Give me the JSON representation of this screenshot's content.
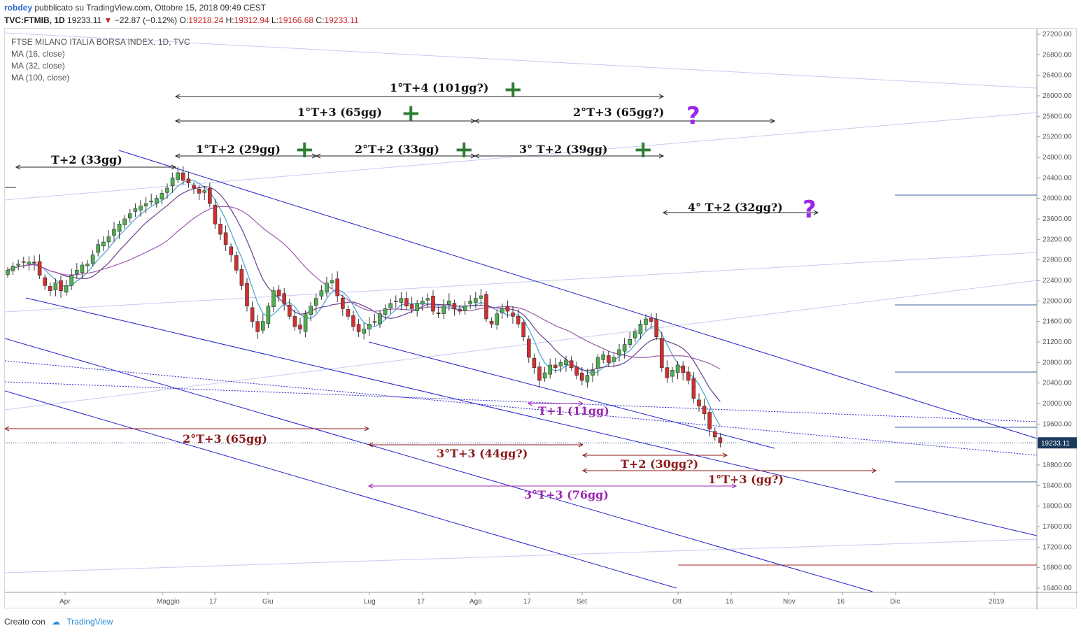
{
  "header": {
    "author": "robdey",
    "published": "pubblicato su TradingView.com, Ottobre 15, 2018 09:49 CEST",
    "symbol": "TVC:FTMIB, 1D",
    "last": "19233.11",
    "change": "−22.87 (−0.12%)",
    "o_label": "O:",
    "o_value": "19218.24",
    "h_label": "H:",
    "h_value": "19312.94",
    "l_label": "L:",
    "l_value": "19166.68",
    "c_label": "C:",
    "c_value": "19233.11"
  },
  "legend": {
    "title": "FTSE MILANO ITALIA BORSA INDEX, 1D, TVC",
    "ma1": "MA (16, close)",
    "ma2": "MA (32, close)",
    "ma3": "MA (100, close)"
  },
  "footer": {
    "created": "Creato con",
    "brand": "TradingView"
  },
  "colors": {
    "up": "#4caf50",
    "down": "#d32f2f",
    "channel": "#2222cc",
    "ma16": "#4aa3c9",
    "ma32": "#6a3d8e",
    "ma100": "#9c5cab",
    "label_bg": "#1a3a5c"
  },
  "chart_data": {
    "type": "candlestick",
    "symbol": "TVC:FTMIB",
    "interval": "1D",
    "y_axis": {
      "min": 16400,
      "max": 27200,
      "ticks": [
        16400,
        16800,
        17200,
        17600,
        18000,
        18400,
        18800,
        19200,
        19600,
        20000,
        20400,
        20800,
        21200,
        21600,
        22000,
        22400,
        22800,
        23200,
        23600,
        24000,
        24400,
        24800,
        25200,
        25600,
        26000,
        26400,
        26800,
        27200
      ],
      "position": "right"
    },
    "x_axis": {
      "labels": [
        "Apr",
        "Maggio",
        "17",
        "Giu",
        "Lug",
        "17",
        "Ago",
        "17",
        "Set",
        "Ott",
        "16",
        "Nov",
        "16",
        "Dic",
        "2019"
      ]
    },
    "last_price_label": "19233.11",
    "closes": [
      22600,
      22680,
      22720,
      22750,
      22760,
      22740,
      22500,
      22300,
      22200,
      22350,
      22200,
      22300,
      22500,
      22600,
      22700,
      22720,
      22900,
      23100,
      23150,
      23250,
      23400,
      23500,
      23600,
      23700,
      23800,
      23850,
      23900,
      23950,
      24000,
      24100,
      24200,
      24400,
      24500,
      24350,
      24300,
      24200,
      24100,
      24150,
      23900,
      23500,
      23300,
      23100,
      22900,
      22600,
      22300,
      21900,
      21600,
      21400,
      21600,
      21900,
      22200,
      22100,
      21950,
      21700,
      21500,
      21450,
      21750,
      21900,
      22050,
      22200,
      22350,
      22400,
      22100,
      21850,
      21700,
      21500,
      21400,
      21450,
      21550,
      21600,
      21750,
      21850,
      21950,
      22000,
      22050,
      21900,
      21850,
      21950,
      22000,
      22050,
      21800,
      21750,
      21900,
      22000,
      21850,
      21800,
      21900,
      22000,
      22050,
      22100,
      21650,
      21550,
      21750,
      21850,
      21800,
      21700,
      21550,
      21300,
      20900,
      20700,
      20450,
      20600,
      20750,
      20700,
      20800,
      20850,
      20700,
      20550,
      20450,
      20550,
      20650,
      20900,
      20950,
      20800,
      20900,
      21050,
      21150,
      21250,
      21400,
      21550,
      21650,
      21600,
      21300,
      20700,
      20500,
      20650,
      20750,
      20600,
      20450,
      20100,
      19950,
      19800,
      19500,
      19350,
      19233
    ],
    "ma_series": [
      {
        "name": "MA (16, close)"
      },
      {
        "name": "MA (32, close)"
      },
      {
        "name": "MA (100, close)"
      }
    ],
    "annotations": [
      {
        "text": "1°T+4 (101gg?)",
        "mark": "+",
        "color": "#111111"
      },
      {
        "text": "1°T+3 (65gg)",
        "mark": "+",
        "color": "#111111"
      },
      {
        "text": "2°T+3 (65gg?)",
        "mark": "?",
        "color": "#111111"
      },
      {
        "text": "1°T+2 (29gg)",
        "mark": "+",
        "color": "#111111"
      },
      {
        "text": "2°T+2 (33gg)",
        "mark": "+",
        "color": "#111111"
      },
      {
        "text": "3° T+2 (39gg)",
        "mark": "+",
        "color": "#111111"
      },
      {
        "text": "T+2 (33gg)",
        "mark": "",
        "color": "#111111"
      },
      {
        "text": "4° T+2 (32gg?)",
        "mark": "?",
        "color": "#111111"
      },
      {
        "text": "T+1 (11gg)",
        "mark": "",
        "color": "#9c27b0"
      },
      {
        "text": "2°T+3 (65gg)",
        "mark": "",
        "color": "#8b1a1a"
      },
      {
        "text": "3°T+3 (44gg?)",
        "mark": "",
        "color": "#8b1a1a"
      },
      {
        "text": "T+2 (30gg?)",
        "mark": "",
        "color": "#8b1a1a"
      },
      {
        "text": "1°T+3 (gg?)",
        "mark": "",
        "color": "#8b1a1a"
      },
      {
        "text": "3°T+3 (76gg)",
        "mark": "",
        "color": "#9c27b0"
      }
    ]
  }
}
